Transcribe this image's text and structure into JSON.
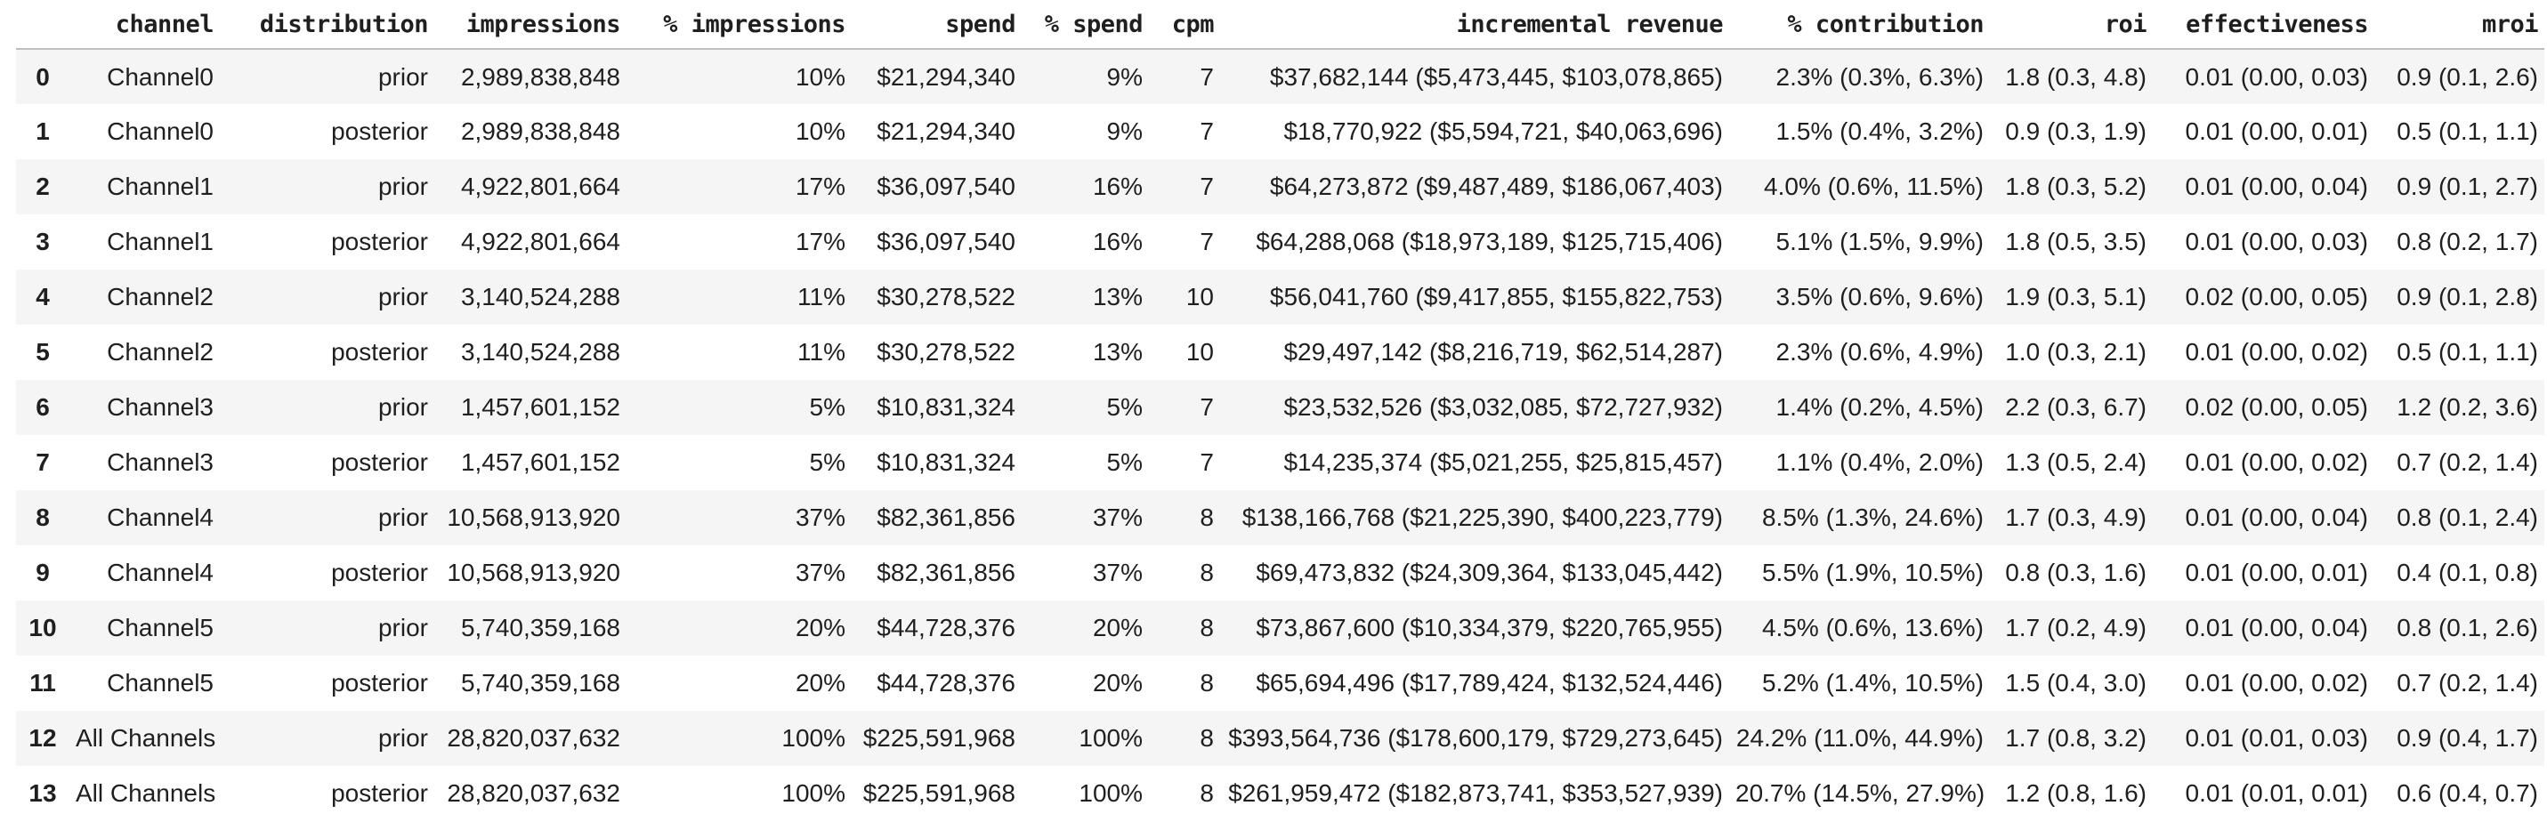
{
  "colors": {
    "background": "#ffffff",
    "row_stripe": "#f5f5f5",
    "text": "#1f1f1f",
    "header_border": "#bdbdbd"
  },
  "table": {
    "columns": [
      "",
      "channel",
      "distribution",
      "impressions",
      "% impressions",
      "spend",
      "% spend",
      "cpm",
      "incremental revenue",
      "% contribution",
      "roi",
      "effectiveness",
      "mroi"
    ],
    "rows": [
      [
        "0",
        "Channel0",
        "prior",
        "2,989,838,848",
        "10%",
        "$21,294,340",
        "9%",
        "7",
        "$37,682,144 ($5,473,445, $103,078,865)",
        "2.3% (0.3%, 6.3%)",
        "1.8 (0.3, 4.8)",
        "0.01 (0.00, 0.03)",
        "0.9 (0.1, 2.6)"
      ],
      [
        "1",
        "Channel0",
        "posterior",
        "2,989,838,848",
        "10%",
        "$21,294,340",
        "9%",
        "7",
        "$18,770,922 ($5,594,721, $40,063,696)",
        "1.5% (0.4%, 3.2%)",
        "0.9 (0.3, 1.9)",
        "0.01 (0.00, 0.01)",
        "0.5 (0.1, 1.1)"
      ],
      [
        "2",
        "Channel1",
        "prior",
        "4,922,801,664",
        "17%",
        "$36,097,540",
        "16%",
        "7",
        "$64,273,872 ($9,487,489, $186,067,403)",
        "4.0% (0.6%, 11.5%)",
        "1.8 (0.3, 5.2)",
        "0.01 (0.00, 0.04)",
        "0.9 (0.1, 2.7)"
      ],
      [
        "3",
        "Channel1",
        "posterior",
        "4,922,801,664",
        "17%",
        "$36,097,540",
        "16%",
        "7",
        "$64,288,068 ($18,973,189, $125,715,406)",
        "5.1% (1.5%, 9.9%)",
        "1.8 (0.5, 3.5)",
        "0.01 (0.00, 0.03)",
        "0.8 (0.2, 1.7)"
      ],
      [
        "4",
        "Channel2",
        "prior",
        "3,140,524,288",
        "11%",
        "$30,278,522",
        "13%",
        "10",
        "$56,041,760 ($9,417,855, $155,822,753)",
        "3.5% (0.6%, 9.6%)",
        "1.9 (0.3, 5.1)",
        "0.02 (0.00, 0.05)",
        "0.9 (0.1, 2.8)"
      ],
      [
        "5",
        "Channel2",
        "posterior",
        "3,140,524,288",
        "11%",
        "$30,278,522",
        "13%",
        "10",
        "$29,497,142 ($8,216,719, $62,514,287)",
        "2.3% (0.6%, 4.9%)",
        "1.0 (0.3, 2.1)",
        "0.01 (0.00, 0.02)",
        "0.5 (0.1, 1.1)"
      ],
      [
        "6",
        "Channel3",
        "prior",
        "1,457,601,152",
        "5%",
        "$10,831,324",
        "5%",
        "7",
        "$23,532,526 ($3,032,085, $72,727,932)",
        "1.4% (0.2%, 4.5%)",
        "2.2 (0.3, 6.7)",
        "0.02 (0.00, 0.05)",
        "1.2 (0.2, 3.6)"
      ],
      [
        "7",
        "Channel3",
        "posterior",
        "1,457,601,152",
        "5%",
        "$10,831,324",
        "5%",
        "7",
        "$14,235,374 ($5,021,255, $25,815,457)",
        "1.1% (0.4%, 2.0%)",
        "1.3 (0.5, 2.4)",
        "0.01 (0.00, 0.02)",
        "0.7 (0.2, 1.4)"
      ],
      [
        "8",
        "Channel4",
        "prior",
        "10,568,913,920",
        "37%",
        "$82,361,856",
        "37%",
        "8",
        "$138,166,768 ($21,225,390, $400,223,779)",
        "8.5% (1.3%, 24.6%)",
        "1.7 (0.3, 4.9)",
        "0.01 (0.00, 0.04)",
        "0.8 (0.1, 2.4)"
      ],
      [
        "9",
        "Channel4",
        "posterior",
        "10,568,913,920",
        "37%",
        "$82,361,856",
        "37%",
        "8",
        "$69,473,832 ($24,309,364, $133,045,442)",
        "5.5% (1.9%, 10.5%)",
        "0.8 (0.3, 1.6)",
        "0.01 (0.00, 0.01)",
        "0.4 (0.1, 0.8)"
      ],
      [
        "10",
        "Channel5",
        "prior",
        "5,740,359,168",
        "20%",
        "$44,728,376",
        "20%",
        "8",
        "$73,867,600 ($10,334,379, $220,765,955)",
        "4.5% (0.6%, 13.6%)",
        "1.7 (0.2, 4.9)",
        "0.01 (0.00, 0.04)",
        "0.8 (0.1, 2.6)"
      ],
      [
        "11",
        "Channel5",
        "posterior",
        "5,740,359,168",
        "20%",
        "$44,728,376",
        "20%",
        "8",
        "$65,694,496 ($17,789,424, $132,524,446)",
        "5.2% (1.4%, 10.5%)",
        "1.5 (0.4, 3.0)",
        "0.01 (0.00, 0.02)",
        "0.7 (0.2, 1.4)"
      ],
      [
        "12",
        "All Channels",
        "prior",
        "28,820,037,632",
        "100%",
        "$225,591,968",
        "100%",
        "8",
        "$393,564,736 ($178,600,179, $729,273,645)",
        "24.2% (11.0%, 44.9%)",
        "1.7 (0.8, 3.2)",
        "0.01 (0.01, 0.03)",
        "0.9 (0.4, 1.7)"
      ],
      [
        "13",
        "All Channels",
        "posterior",
        "28,820,037,632",
        "100%",
        "$225,591,968",
        "100%",
        "8",
        "$261,959,472 ($182,873,741, $353,527,939)",
        "20.7% (14.5%, 27.9%)",
        "1.2 (0.8, 1.6)",
        "0.01 (0.01, 0.01)",
        "0.6 (0.4, 0.7)"
      ]
    ]
  }
}
